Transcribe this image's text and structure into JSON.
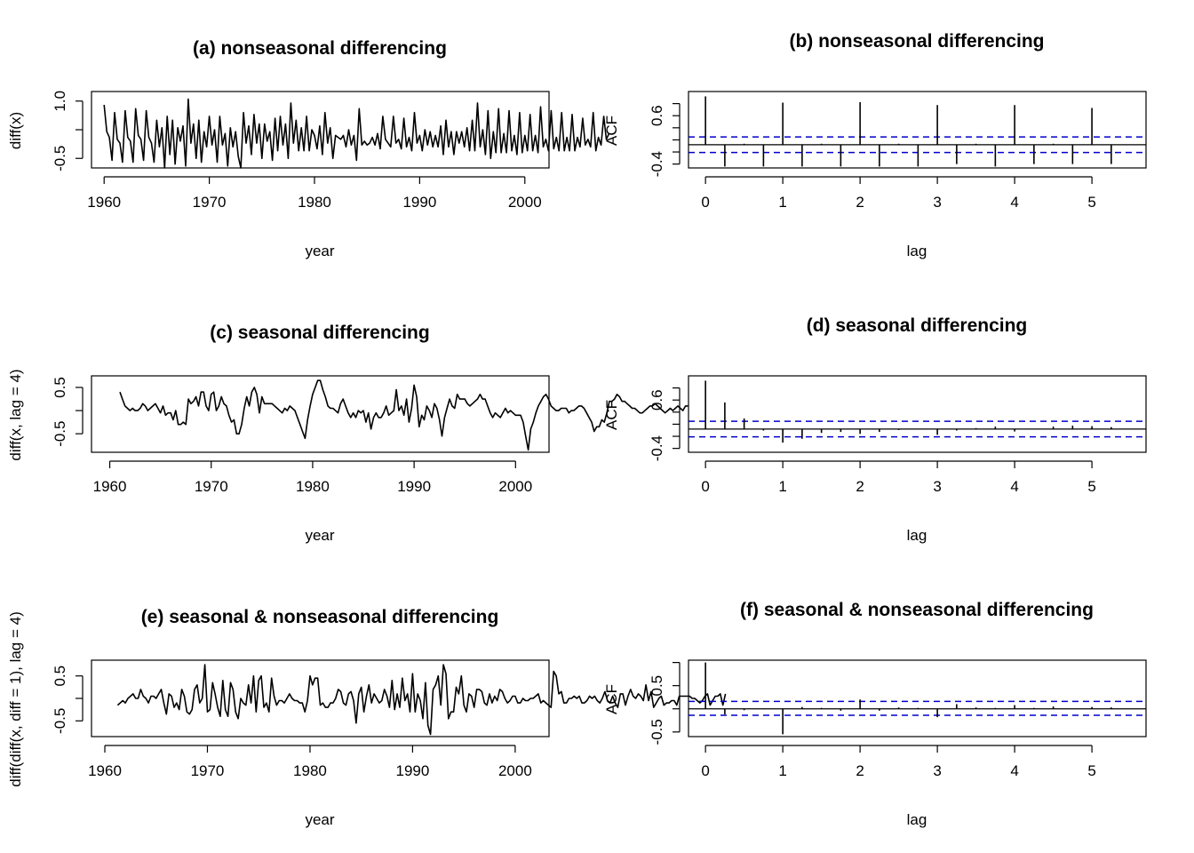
{
  "figure": {
    "title": ""
  },
  "chart_data": [
    {
      "id": "a",
      "type": "line",
      "title": "(a) nonseasonal differencing",
      "xlabel": "year",
      "ylabel": "diff(x)",
      "xlim": [
        1958.8,
        2002.3
      ],
      "ylim": [
        -0.75,
        1.25
      ],
      "x_ticks": [
        "1960",
        "1970",
        "1980",
        "1990",
        "2000"
      ],
      "x_tick_values": [
        1960,
        1970,
        1980,
        1990,
        2000
      ],
      "y_ticks": [
        "-0.5",
        "1.0"
      ],
      "y_tick_values": [
        -0.5,
        0.25,
        1.0
      ],
      "series": [
        {
          "start": 1960.0,
          "step": 0.25,
          "values": [
            0.9,
            0.2,
            0.05,
            -0.55,
            0.7,
            0.0,
            -0.1,
            -0.6,
            0.75,
            0.05,
            -0.05,
            -0.6,
            0.8,
            0.1,
            0.0,
            -0.55,
            0.75,
            0.05,
            -0.1,
            -0.6,
            0.5,
            -0.2,
            0.3,
            -0.75,
            0.6,
            -0.4,
            0.5,
            -0.65,
            0.3,
            -0.05,
            0.35,
            -0.7,
            1.05,
            -0.1,
            0.4,
            -0.5,
            0.5,
            -0.6,
            0.2,
            -0.2,
            0.6,
            -0.15,
            0.25,
            -0.6,
            0.6,
            -0.15,
            0.15,
            -0.7,
            0.3,
            -0.2,
            0.2,
            -0.45,
            -0.75,
            0.7,
            -0.1,
            0.35,
            -0.4,
            0.65,
            -0.1,
            0.4,
            -0.5,
            0.4,
            -0.05,
            0.2,
            -0.55,
            0.55,
            -0.3,
            0.6,
            -0.15,
            0.4,
            -0.5,
            0.95,
            -0.1,
            0.5,
            -0.3,
            0.3,
            -0.3,
            0.6,
            -0.3,
            0.25,
            0.1,
            -0.25,
            0.35,
            -0.4,
            0.7,
            -0.1,
            0.3,
            -0.5,
            0.1,
            0.05,
            0.0,
            0.1,
            -0.2,
            0.25,
            -0.15,
            0.1,
            -0.55,
            0.8,
            -0.15,
            -0.05,
            -0.15,
            -0.1,
            0.05,
            -0.15,
            0.15,
            -0.25,
            0.6,
            0.0,
            -0.1,
            -0.2,
            0.6,
            -0.1,
            0.0,
            -0.25,
            0.55,
            -0.2,
            0.05,
            -0.3,
            0.7,
            -0.1,
            0.1,
            -0.3,
            0.25,
            -0.15,
            0.2,
            -0.2,
            0.1,
            -0.2,
            0.35,
            -0.4,
            0.5,
            -0.2,
            0.2,
            -0.4,
            0.2,
            -0.1,
            0.2,
            -0.2,
            0.3,
            -0.3,
            0.5,
            -0.3,
            0.95,
            -0.2,
            0.25,
            -0.4,
            0.75,
            -0.5,
            0.2,
            -0.35,
            0.8,
            -0.35,
            0.15,
            -0.35,
            0.75,
            -0.3,
            0.1,
            -0.4,
            0.7,
            -0.35,
            0.1,
            -0.3,
            0.65,
            -0.3,
            0.1,
            -0.35,
            0.85,
            -0.2,
            0.0,
            -0.3,
            0.75,
            -0.25,
            0.05,
            -0.3,
            0.7,
            -0.3,
            0.05,
            -0.3,
            0.65,
            -0.3,
            0.05,
            -0.2,
            0.55,
            -0.15,
            0.0,
            -0.2,
            0.7,
            -0.3,
            0.05,
            -0.15,
            0.6,
            0.0,
            0.15
          ]
        }
      ]
    },
    {
      "id": "b",
      "type": "bar",
      "title": "(b) nonseasonal differencing",
      "xlabel": "lag",
      "ylabel": "ACF",
      "xlim": [
        -0.22,
        5.7
      ],
      "ylim": [
        -0.48,
        1.1
      ],
      "x_ticks": [
        "0",
        "1",
        "2",
        "3",
        "4",
        "5"
      ],
      "x_tick_values": [
        0,
        1,
        2,
        3,
        4,
        5
      ],
      "y_ticks": [
        "-0.4",
        "0.6"
      ],
      "y_tick_values": [
        -0.4,
        -0.15,
        0.1,
        0.35,
        0.6,
        0.85
      ],
      "conf_band": [
        -0.16,
        0.16
      ],
      "lags": [
        0,
        0.25,
        0.5,
        0.75,
        1,
        1.25,
        1.5,
        1.75,
        2,
        2.25,
        2.5,
        2.75,
        3,
        3.25,
        3.5,
        3.75,
        4,
        4.25,
        4.5,
        4.75,
        5,
        5.25
      ],
      "values": [
        1.0,
        -0.45,
        0.02,
        -0.45,
        0.87,
        -0.45,
        0.02,
        -0.45,
        0.88,
        -0.45,
        0.02,
        -0.45,
        0.82,
        -0.4,
        0.02,
        -0.45,
        0.82,
        -0.4,
        0.02,
        -0.4,
        0.76,
        -0.4
      ]
    },
    {
      "id": "c",
      "type": "line",
      "title": "(c) seasonal differencing",
      "xlabel": "year",
      "ylabel": "diff(x, lag = 4)",
      "xlim": [
        1958.2,
        2003.3
      ],
      "ylim": [
        -0.9,
        0.75
      ],
      "x_ticks": [
        "1960",
        "1970",
        "1980",
        "1990",
        "2000"
      ],
      "x_tick_values": [
        1960,
        1970,
        1980,
        1990,
        2000
      ],
      "y_ticks": [
        "-0.5",
        "0.5"
      ],
      "y_tick_values": [
        -0.5,
        0.0,
        0.5
      ],
      "series": [
        {
          "start": 1961.0,
          "step": 0.25,
          "values": [
            0.4,
            0.25,
            0.1,
            0.05,
            0.0,
            0.05,
            0.0,
            0.0,
            0.05,
            0.15,
            0.1,
            0.0,
            0.05,
            0.1,
            0.15,
            0.05,
            -0.05,
            0.1,
            -0.1,
            -0.05,
            -0.05,
            -0.2,
            0.0,
            -0.3,
            -0.3,
            -0.25,
            -0.3,
            0.25,
            0.15,
            0.2,
            0.3,
            0.1,
            0.4,
            0.4,
            0.1,
            0.0,
            0.35,
            0.4,
            0.0,
            0.1,
            0.3,
            0.15,
            0.1,
            -0.1,
            -0.25,
            -0.2,
            -0.5,
            -0.5,
            -0.3,
            0.05,
            0.3,
            0.1,
            0.4,
            0.5,
            0.35,
            -0.05,
            0.3,
            0.15,
            0.15,
            0.15,
            0.15,
            0.1,
            0.05,
            0.0,
            -0.05,
            0.05,
            0.0,
            0.1,
            0.05,
            0.0,
            -0.15,
            -0.3,
            -0.45,
            -0.6,
            -0.2,
            0.1,
            0.35,
            0.5,
            0.65,
            0.65,
            0.45,
            0.3,
            0.1,
            0.05,
            0.05,
            0.0,
            -0.05,
            0.15,
            0.25,
            0.1,
            -0.05,
            -0.15,
            -0.05,
            -0.15,
            0.0,
            -0.05,
            0.0,
            -0.25,
            -0.05,
            -0.4,
            -0.15,
            -0.05,
            -0.15,
            -0.15,
            -0.05,
            0.1,
            -0.1,
            -0.05,
            0.0,
            0.45,
            0.0,
            0.1,
            -0.1,
            0.25,
            -0.25,
            0.05,
            0.55,
            0.3,
            -0.35,
            -0.1,
            -0.2,
            0.1,
            0.0,
            -0.15,
            0.15,
            0.05,
            -0.2,
            -0.55,
            -0.15,
            0.05,
            0.25,
            0.1,
            0.05,
            0.35,
            0.25,
            0.25,
            0.25,
            0.15,
            0.1,
            0.15,
            0.2,
            0.25,
            0.35,
            0.25,
            0.25,
            0.1,
            -0.05,
            -0.15,
            -0.05,
            -0.1,
            -0.15,
            -0.05,
            0.05,
            -0.05,
            0.0,
            -0.05,
            -0.1,
            -0.1,
            -0.1,
            -0.25,
            -0.55,
            -0.85,
            -0.4,
            -0.25,
            -0.05,
            0.1,
            0.2,
            0.3,
            0.35,
            0.25,
            0.1,
            0.05,
            0.0,
            0.0,
            0.05,
            0.05,
            0.05,
            -0.05,
            0.0,
            0.0,
            0.05,
            0.1,
            0.1,
            0.05,
            -0.05,
            -0.15,
            -0.25,
            -0.45,
            -0.35,
            -0.35,
            -0.2,
            -0.25,
            -0.05,
            0.2,
            0.2,
            0.25,
            0.35,
            0.3,
            0.2,
            0.2,
            0.15,
            0.1,
            0.05,
            0.05,
            0.0,
            -0.05,
            -0.05,
            0.0,
            0.05,
            0.1,
            0.1,
            0.15,
            0.1,
            0.05,
            0.0,
            -0.05,
            0.0,
            0.05,
            0.0,
            0.05,
            0.1,
            0.05,
            0.0,
            0.1,
            0.1
          ]
        }
      ]
    },
    {
      "id": "d",
      "type": "bar",
      "title": "(d) seasonal differencing",
      "xlabel": "lag",
      "ylabel": "ACF",
      "xlim": [
        -0.22,
        5.7
      ],
      "ylim": [
        -0.48,
        1.1
      ],
      "x_ticks": [
        "0",
        "1",
        "2",
        "3",
        "4",
        "5"
      ],
      "x_tick_values": [
        0,
        1,
        2,
        3,
        4,
        5
      ],
      "y_ticks": [
        "-0.4",
        "0.6"
      ],
      "y_tick_values": [
        -0.4,
        -0.15,
        0.1,
        0.35,
        0.6,
        0.85
      ],
      "conf_band": [
        -0.16,
        0.16
      ],
      "lags": [
        0,
        0.25,
        0.5,
        0.75,
        1,
        1.25,
        1.5,
        1.75,
        2,
        2.25,
        2.5,
        2.75,
        3,
        3.25,
        3.5,
        3.75,
        4,
        4.25,
        4.5,
        4.75,
        5,
        5.25
      ],
      "values": [
        1.0,
        0.55,
        0.22,
        -0.03,
        -0.28,
        -0.2,
        -0.08,
        -0.06,
        -0.1,
        -0.06,
        -0.02,
        0.0,
        -0.12,
        -0.03,
        0.02,
        0.05,
        -0.05,
        0.0,
        0.05,
        0.07,
        0.06,
        0.04
      ]
    },
    {
      "id": "e",
      "type": "line",
      "title": "(e) seasonal & nonseasonal differencing",
      "xlabel": "year",
      "ylabel": "diff(diff(x, diff = 1), lag = 4)",
      "xlim": [
        1958.7,
        2003.3
      ],
      "ylim": [
        -0.85,
        0.85
      ],
      "x_ticks": [
        "1960",
        "1970",
        "1980",
        "1990",
        "2000"
      ],
      "x_tick_values": [
        1960,
        1970,
        1980,
        1990,
        2000
      ],
      "y_ticks": [
        "-0.5",
        "0.5"
      ],
      "y_tick_values": [
        -0.5,
        0.0,
        0.5
      ],
      "series": [
        {
          "start": 1961.25,
          "step": 0.25,
          "values": [
            -0.15,
            -0.1,
            -0.05,
            -0.1,
            0.0,
            0.05,
            0.1,
            0.0,
            0.0,
            0.2,
            0.05,
            0.0,
            -0.1,
            0.05,
            0.05,
            0.0,
            0.1,
            0.2,
            -0.1,
            -0.35,
            0.1,
            0.05,
            -0.2,
            -0.1,
            -0.25,
            0.2,
            0.05,
            -0.3,
            -0.35,
            -0.25,
            0.2,
            0.3,
            -0.1,
            0.0,
            0.75,
            -0.3,
            -0.25,
            0.35,
            0.1,
            -0.2,
            -0.4,
            0.4,
            -0.25,
            -0.4,
            0.35,
            0.2,
            -0.3,
            -0.45,
            0.0,
            -0.1,
            -0.15,
            0.3,
            -0.1,
            0.5,
            -0.3,
            0.4,
            0.5,
            -0.2,
            -0.1,
            -0.3,
            0.45,
            0.05,
            -0.15,
            -0.05,
            -0.05,
            -0.1,
            0.0,
            0.1,
            0.0,
            -0.05,
            -0.05,
            -0.1,
            -0.1,
            -0.3,
            -0.05,
            0.5,
            0.3,
            0.45,
            0.45,
            -0.15,
            -0.1,
            -0.2,
            -0.2,
            -0.1,
            -0.1,
            0.0,
            0.2,
            0.15,
            -0.1,
            -0.15,
            0.1,
            0.15,
            -0.05,
            -0.55,
            0.1,
            0.25,
            -0.3,
            0.05,
            0.3,
            -0.1,
            0.1,
            0.0,
            -0.1,
            -0.05,
            0.2,
            0.05,
            -0.2,
            0.4,
            -0.25,
            0.1,
            -0.2,
            0.45,
            -0.05,
            0.1,
            -0.3,
            0.55,
            -0.3,
            0.1,
            -0.05,
            -0.45,
            0.35,
            -0.6,
            -0.8,
            0.2,
            0.3,
            0.5,
            -0.15,
            0.75,
            0.55,
            -0.45,
            -0.3,
            -0.3,
            0.25,
            0.1,
            0.5,
            -0.15,
            -0.3,
            0.1,
            0.05,
            -0.2,
            0.2,
            0.2,
            0.15,
            -0.1,
            -0.15,
            0.1,
            -0.1,
            0.05,
            -0.05,
            0.2,
            0.15,
            0.0,
            -0.1,
            -0.05,
            0.05,
            0.05,
            -0.1,
            -0.1,
            0.0,
            -0.05,
            -0.05,
            0.0,
            0.0,
            0.05,
            0.1,
            -0.1,
            -0.05,
            -0.1,
            -0.15,
            -0.2,
            0.6,
            0.5,
            0.1,
            0.15,
            -0.1,
            -0.1,
            0.0,
            0.0,
            0.05,
            0.0,
            0.05,
            -0.1,
            -0.1,
            -0.05,
            0.05,
            0.0,
            0.05,
            -0.05,
            -0.1,
            0.0,
            0.15,
            -0.05,
            -0.1,
            0.05,
            -0.1,
            -0.2,
            0.1,
            0.1,
            -0.15,
            0.05,
            0.2,
            0.05,
            0.0,
            0.1,
            0.05,
            -0.05,
            0.3,
            -0.05,
            0.15,
            -0.2,
            -0.1,
            0.0,
            0.05,
            -0.15,
            -0.1,
            -0.1,
            -0.05,
            -0.05,
            -0.15,
            0.05,
            0.05,
            0.05,
            0.05,
            0.05,
            0.0,
            0.0,
            -0.05,
            -0.1,
            -0.05,
            0.05,
            0.1,
            -0.15,
            -0.05,
            0.05,
            0.05,
            0.1,
            -0.15,
            0.1
          ]
        }
      ]
    },
    {
      "id": "f",
      "type": "bar",
      "title": "(f) seasonal & nonseasonal differencing",
      "xlabel": "lag",
      "ylabel": "ACF",
      "xlim": [
        -0.22,
        5.7
      ],
      "ylim": [
        -0.6,
        1.05
      ],
      "x_ticks": [
        "0",
        "1",
        "2",
        "3",
        "4",
        "5"
      ],
      "x_tick_values": [
        0,
        1,
        2,
        3,
        4,
        5
      ],
      "y_ticks": [
        "-0.5",
        "0.5"
      ],
      "y_tick_values": [
        -0.5,
        0.0,
        0.5,
        1.0
      ],
      "conf_band": [
        -0.14,
        0.16
      ],
      "lags": [
        0,
        0.25,
        0.5,
        0.75,
        1,
        1.25,
        1.5,
        1.75,
        2,
        2.25,
        2.5,
        2.75,
        3,
        3.25,
        3.5,
        3.75,
        4,
        4.25,
        4.5,
        4.75,
        5,
        5.25
      ],
      "values": [
        1.0,
        -0.12,
        -0.03,
        -0.01,
        -0.55,
        0.04,
        0.02,
        -0.04,
        0.2,
        -0.04,
        0.03,
        0.02,
        -0.18,
        0.1,
        0.03,
        0.02,
        0.08,
        0.02,
        0.05,
        0.0,
        0.04,
        0.03
      ]
    }
  ]
}
